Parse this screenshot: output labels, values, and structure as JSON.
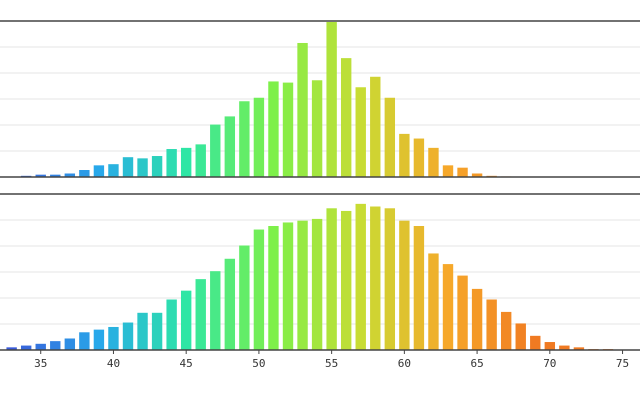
{
  "chart_data": [
    {
      "type": "bar",
      "x": [
        33,
        34,
        35,
        36,
        37,
        38,
        39,
        40,
        41,
        42,
        43,
        44,
        45,
        46,
        47,
        48,
        49,
        50,
        51,
        52,
        53,
        54,
        55,
        56,
        57,
        58,
        59,
        60,
        61,
        62,
        63,
        64,
        65,
        66,
        67,
        68,
        69,
        70,
        71,
        72,
        73,
        74,
        75
      ],
      "values": [
        0,
        1,
        2,
        2,
        3,
        6,
        10,
        11,
        17,
        16,
        18,
        24,
        25,
        28,
        45,
        52,
        65,
        68,
        82,
        81,
        115,
        83,
        133,
        102,
        77,
        86,
        68,
        37,
        33,
        25,
        10,
        8,
        3,
        1,
        0.5,
        0,
        0,
        0,
        0,
        0,
        0,
        0,
        0
      ],
      "ylim": [
        0,
        133
      ],
      "grid": true
    },
    {
      "type": "bar",
      "x": [
        33,
        34,
        35,
        36,
        37,
        38,
        39,
        40,
        41,
        42,
        43,
        44,
        45,
        46,
        47,
        48,
        49,
        50,
        51,
        52,
        53,
        54,
        55,
        56,
        57,
        58,
        59,
        60,
        61,
        62,
        63,
        64,
        65,
        66,
        67,
        68,
        69,
        70,
        71,
        72,
        73,
        74,
        75
      ],
      "values": [
        3,
        5,
        7,
        10,
        13,
        20,
        23,
        26,
        31,
        42,
        42,
        57,
        67,
        80,
        89,
        103,
        118,
        136,
        140,
        144,
        146,
        148,
        160,
        157,
        165,
        162,
        160,
        146,
        140,
        109,
        97,
        84,
        69,
        57,
        43,
        30,
        16,
        9,
        5,
        3,
        1,
        1,
        0
      ],
      "ylim": [
        0,
        175
      ],
      "grid": true
    }
  ],
  "x_axis": {
    "range": [
      32.2,
      76.2
    ],
    "ticks": [
      35,
      40,
      45,
      50,
      55,
      60,
      65,
      70,
      75
    ]
  },
  "colors": {
    "frame": "#444444",
    "grid": "#e6e6e6",
    "colormap_stops": [
      "#3a5bd9",
      "#28a8ea",
      "#2ee6a5",
      "#7ef04a",
      "#c8dc34",
      "#f6a82a",
      "#f07a22"
    ],
    "colormap_range": [
      33,
      69
    ]
  }
}
